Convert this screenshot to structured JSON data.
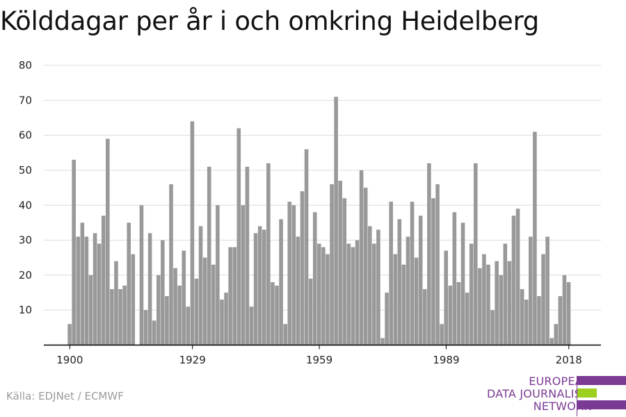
{
  "title": "Kölddagar per år i och omkring Heidelberg",
  "source": "Källa: EDJNet / ECMWF",
  "logo": {
    "lines": [
      "EUROPEAN",
      "DATA JOURNALISM",
      "NETWORK"
    ],
    "colors": {
      "purple": "#7b3a93",
      "green": "#9dcf1f"
    }
  },
  "colors": {
    "bar": "#999999",
    "grid": "#dcdcdc",
    "axis": "#000000"
  },
  "chart_data": {
    "type": "bar",
    "title": "Kölddagar per år i och omkring Heidelberg",
    "xlabel": "",
    "ylabel": "",
    "ylim": [
      0,
      80
    ],
    "yticks": [
      10,
      20,
      30,
      40,
      50,
      60,
      70,
      80
    ],
    "xticks": [
      1900,
      1929,
      1959,
      1989,
      2018
    ],
    "grid": true,
    "x": [
      1900,
      1901,
      1902,
      1903,
      1904,
      1905,
      1906,
      1907,
      1908,
      1909,
      1910,
      1911,
      1912,
      1913,
      1914,
      1915,
      1916,
      1917,
      1918,
      1919,
      1920,
      1921,
      1922,
      1923,
      1924,
      1925,
      1926,
      1927,
      1928,
      1929,
      1930,
      1931,
      1932,
      1933,
      1934,
      1935,
      1936,
      1937,
      1938,
      1939,
      1940,
      1941,
      1942,
      1943,
      1944,
      1945,
      1946,
      1947,
      1948,
      1949,
      1950,
      1951,
      1952,
      1953,
      1954,
      1955,
      1956,
      1957,
      1958,
      1959,
      1960,
      1961,
      1962,
      1963,
      1964,
      1965,
      1966,
      1967,
      1968,
      1969,
      1970,
      1971,
      1972,
      1973,
      1974,
      1975,
      1976,
      1977,
      1978,
      1979,
      1980,
      1981,
      1982,
      1983,
      1984,
      1985,
      1986,
      1987,
      1988,
      1989,
      1990,
      1991,
      1992,
      1993,
      1994,
      1995,
      1996,
      1997,
      1998,
      1999,
      2000,
      2001,
      2002,
      2003,
      2004,
      2005,
      2006,
      2007,
      2008,
      2009,
      2010,
      2011,
      2012,
      2013,
      2014,
      2015,
      2016,
      2017,
      2018
    ],
    "values": [
      6,
      53,
      31,
      35,
      31,
      20,
      32,
      29,
      37,
      59,
      16,
      24,
      16,
      17,
      35,
      26,
      0,
      40,
      10,
      32,
      7,
      20,
      30,
      14,
      46,
      22,
      17,
      27,
      11,
      64,
      19,
      34,
      25,
      51,
      23,
      40,
      13,
      15,
      28,
      28,
      62,
      40,
      51,
      11,
      32,
      34,
      33,
      52,
      18,
      17,
      36,
      6,
      41,
      40,
      31,
      44,
      56,
      19,
      38,
      29,
      28,
      26,
      46,
      71,
      47,
      42,
      29,
      28,
      30,
      50,
      45,
      34,
      29,
      33,
      2,
      15,
      41,
      26,
      36,
      23,
      31,
      41,
      25,
      37,
      16,
      52,
      42,
      46,
      6,
      27,
      17,
      38,
      18,
      35,
      15,
      29,
      52,
      22,
      26,
      23,
      10,
      24,
      20,
      29,
      24,
      37,
      39,
      16,
      13,
      31,
      61,
      14,
      26,
      31,
      2,
      6,
      14,
      20,
      18
    ]
  }
}
